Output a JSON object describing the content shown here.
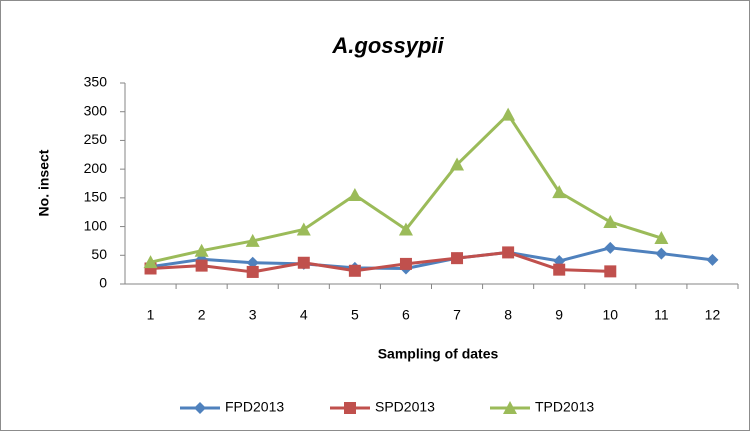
{
  "chart_data": {
    "type": "line",
    "title": "A.gossypii",
    "x_label": "Sampling of dates",
    "y_label": "No. insect",
    "categories": [
      "1",
      "2",
      "3",
      "4",
      "5",
      "6",
      "7",
      "8",
      "9",
      "10",
      "11",
      "12"
    ],
    "series": [
      {
        "name": "FPD2013",
        "color": "#4f81bd",
        "marker": "diamond",
        "values": [
          30,
          43,
          37,
          35,
          28,
          27,
          45,
          55,
          40,
          63,
          53,
          42
        ]
      },
      {
        "name": "SPD2013",
        "color": "#c0504d",
        "marker": "square",
        "values": [
          27,
          32,
          21,
          37,
          23,
          35,
          45,
          55,
          25,
          22,
          null,
          null
        ]
      },
      {
        "name": "TPD2013",
        "color": "#9bbb59",
        "marker": "triangle",
        "values": [
          38,
          58,
          75,
          95,
          155,
          95,
          208,
          295,
          160,
          108,
          80,
          null
        ]
      }
    ],
    "ylim": [
      0,
      350
    ],
    "yticks": [
      0,
      50,
      100,
      150,
      200,
      250,
      300,
      350
    ],
    "grid": false,
    "legend": "bottom"
  }
}
